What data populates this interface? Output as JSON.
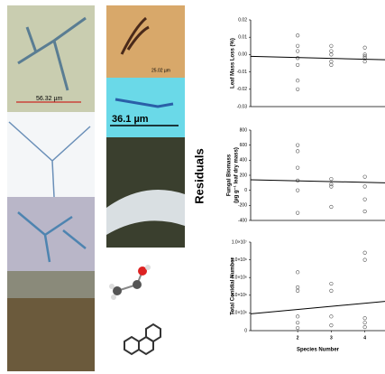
{
  "figure": {
    "shared_ylabel": "Residuals",
    "scale_labels": [
      "56.32 µm",
      "25.02 µm",
      "36.1 µm"
    ]
  },
  "chart_data": [
    {
      "type": "scatter",
      "ylabel": "Leaf Mass Loss (%)",
      "xlim": [
        0.6,
        4.6
      ],
      "ylim": [
        -0.03,
        0.02
      ],
      "yticks": [
        0.02,
        0.01,
        {
          "value": 0,
          "label": "0.00"
        },
        -0.01,
        -0.02,
        -0.03
      ],
      "points": {
        "x": [
          2,
          2,
          2,
          2,
          2,
          2,
          2,
          3,
          3,
          3,
          3,
          3,
          4,
          4,
          4,
          4,
          4
        ],
        "values": [
          0.011,
          0.005,
          0.002,
          -0.002,
          -0.006,
          -0.015,
          -0.02,
          0.005,
          0.002,
          0,
          -0.004,
          -0.006,
          0.004,
          0,
          -0.001,
          -0.002,
          -0.004
        ]
      },
      "fit": {
        "x": [
          0.6,
          4.6
        ],
        "values": [
          -0.001,
          -0.003
        ]
      }
    },
    {
      "type": "scatter",
      "ylabel": [
        "Fungal Biomass",
        "(µg g⁻¹ leaf dry mass)"
      ],
      "xlim": [
        0.6,
        4.6
      ],
      "ylim": [
        -400,
        800
      ],
      "yticks": [
        800,
        600,
        400,
        200,
        0,
        -200,
        -400
      ],
      "points": {
        "x": [
          2,
          2,
          2,
          2,
          2,
          2,
          3,
          3,
          3,
          3,
          4,
          4,
          4,
          4
        ],
        "values": [
          600,
          520,
          300,
          130,
          0,
          -300,
          150,
          80,
          50,
          -220,
          180,
          50,
          -120,
          -280
        ]
      },
      "fit": {
        "x": [
          0.6,
          4.6
        ],
        "values": [
          140,
          100
        ]
      }
    },
    {
      "type": "scatter",
      "ylabel": "Total Conidial Number",
      "xlabel": "Species Number",
      "xlim": [
        0.6,
        4.6
      ],
      "ylim": [
        0,
        10000000
      ],
      "xticks": [
        2,
        3,
        4
      ],
      "yticks": [
        {
          "value": 10000000,
          "label": "1.0×10⁷"
        },
        {
          "value": 8000000,
          "label": "8.0×10⁶"
        },
        {
          "value": 6000000,
          "label": "6.0×10⁶"
        },
        {
          "value": 4000000,
          "label": "4.0×10⁶"
        },
        {
          "value": 2000000,
          "label": "2.0×10⁶"
        },
        0
      ],
      "points": {
        "x": [
          2,
          2,
          2,
          2,
          2,
          2,
          3,
          3,
          3,
          3,
          4,
          4,
          4,
          4,
          4
        ],
        "values": [
          6600000,
          4900000,
          4500000,
          1600000,
          900000,
          300000,
          5300000,
          4500000,
          1600000,
          600000,
          8800000,
          8000000,
          1400000,
          900000,
          400000
        ]
      },
      "fit": {
        "x": [
          0.6,
          4.6
        ],
        "values": [
          1900000,
          3300000
        ]
      }
    }
  ]
}
